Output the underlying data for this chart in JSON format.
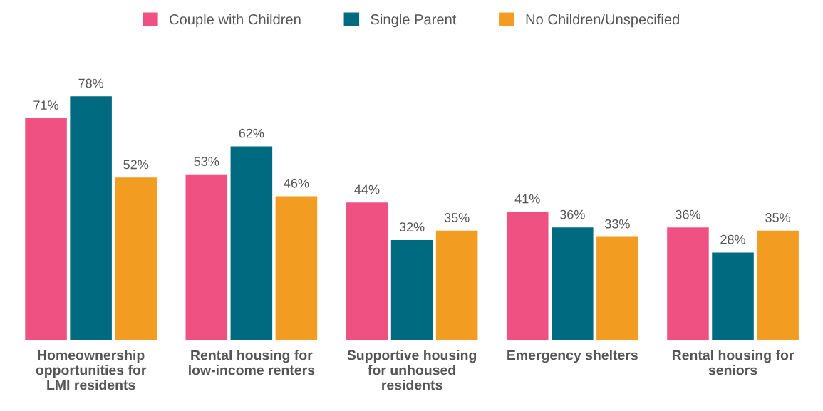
{
  "chart_data": {
    "type": "bar",
    "categories": [
      "Homeownership opportunities for LMI residents",
      "Rental housing for low-income renters",
      "Supportive housing for unhoused residents",
      "Emergency shelters",
      "Rental housing for seniors"
    ],
    "series": [
      {
        "name": "Couple with Children",
        "color": "#ef5183",
        "values": [
          71,
          53,
          44,
          41,
          36
        ],
        "value_labels": [
          "71%",
          "53%",
          "44%",
          "41%",
          "36%"
        ]
      },
      {
        "name": "Single Parent",
        "color": "#006b80",
        "values": [
          78,
          62,
          32,
          36,
          28
        ],
        "value_labels": [
          "78%",
          "62%",
          "32%",
          "36%",
          "28%"
        ]
      },
      {
        "name": "No Children/Unspecified",
        "color": "#f29c22",
        "values": [
          52,
          46,
          35,
          33,
          35
        ],
        "value_labels": [
          "52%",
          "46%",
          "35%",
          "33%",
          "35%"
        ]
      }
    ],
    "legend": "top",
    "grid": false
  }
}
